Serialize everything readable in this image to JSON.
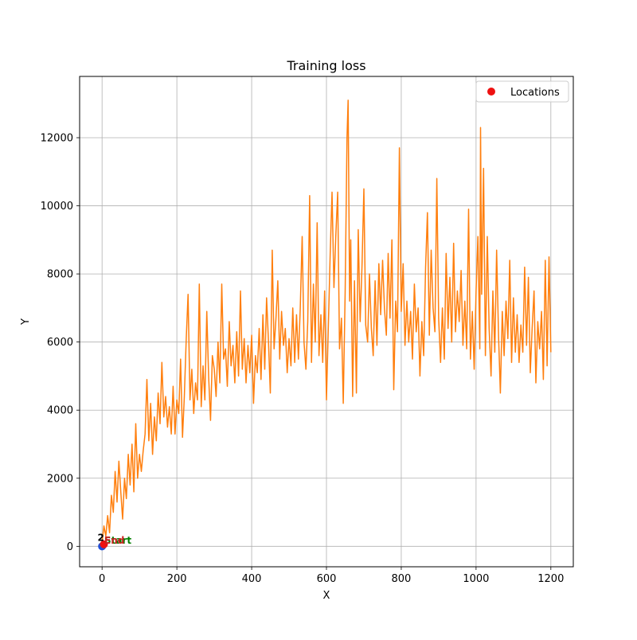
{
  "chart_data": {
    "type": "line",
    "title": "Training loss",
    "xlabel": "X",
    "ylabel": "Y",
    "xlim": [
      -60,
      1260
    ],
    "ylim": [
      -600,
      13800
    ],
    "xticks": [
      0,
      200,
      400,
      600,
      800,
      1000,
      1200
    ],
    "yticks": [
      0,
      2000,
      4000,
      6000,
      8000,
      10000,
      12000
    ],
    "grid": true,
    "legend": {
      "position": "top-right",
      "entries": [
        {
          "label": "Locations",
          "marker": "circle",
          "color": "#ee1111"
        }
      ]
    },
    "series": [
      {
        "color": "#ff7f0e",
        "points": [
          [
            0,
            100
          ],
          [
            5,
            600
          ],
          [
            10,
            300
          ],
          [
            15,
            900
          ],
          [
            20,
            400
          ],
          [
            25,
            1500
          ],
          [
            30,
            1000
          ],
          [
            35,
            2200
          ],
          [
            40,
            1300
          ],
          [
            45,
            2500
          ],
          [
            50,
            1600
          ],
          [
            55,
            800
          ],
          [
            60,
            2000
          ],
          [
            65,
            1400
          ],
          [
            70,
            2700
          ],
          [
            75,
            1800
          ],
          [
            80,
            3000
          ],
          [
            85,
            1600
          ],
          [
            90,
            3600
          ],
          [
            95,
            2000
          ],
          [
            100,
            2700
          ],
          [
            105,
            2200
          ],
          [
            110,
            2800
          ],
          [
            115,
            3300
          ],
          [
            120,
            4900
          ],
          [
            125,
            3100
          ],
          [
            130,
            4200
          ],
          [
            135,
            2700
          ],
          [
            140,
            3800
          ],
          [
            145,
            3100
          ],
          [
            150,
            4500
          ],
          [
            155,
            3600
          ],
          [
            160,
            5400
          ],
          [
            165,
            3800
          ],
          [
            170,
            4400
          ],
          [
            175,
            3500
          ],
          [
            180,
            4100
          ],
          [
            185,
            3300
          ],
          [
            190,
            4700
          ],
          [
            195,
            3300
          ],
          [
            200,
            4300
          ],
          [
            205,
            3900
          ],
          [
            210,
            5500
          ],
          [
            215,
            3200
          ],
          [
            220,
            4400
          ],
          [
            225,
            6100
          ],
          [
            230,
            7400
          ],
          [
            235,
            4300
          ],
          [
            240,
            5200
          ],
          [
            245,
            3900
          ],
          [
            250,
            4800
          ],
          [
            255,
            4300
          ],
          [
            260,
            7700
          ],
          [
            265,
            4100
          ],
          [
            270,
            5300
          ],
          [
            275,
            4300
          ],
          [
            280,
            6900
          ],
          [
            285,
            5000
          ],
          [
            290,
            3700
          ],
          [
            295,
            5600
          ],
          [
            300,
            5200
          ],
          [
            305,
            4400
          ],
          [
            310,
            6000
          ],
          [
            315,
            4800
          ],
          [
            320,
            7700
          ],
          [
            325,
            5500
          ],
          [
            330,
            5800
          ],
          [
            335,
            4700
          ],
          [
            340,
            6600
          ],
          [
            345,
            5300
          ],
          [
            350,
            5900
          ],
          [
            355,
            4800
          ],
          [
            360,
            6300
          ],
          [
            365,
            5000
          ],
          [
            370,
            7500
          ],
          [
            375,
            5200
          ],
          [
            380,
            6100
          ],
          [
            385,
            4800
          ],
          [
            390,
            5900
          ],
          [
            395,
            5100
          ],
          [
            400,
            6200
          ],
          [
            405,
            4200
          ],
          [
            410,
            5600
          ],
          [
            415,
            5100
          ],
          [
            420,
            6400
          ],
          [
            425,
            4900
          ],
          [
            430,
            6800
          ],
          [
            435,
            5200
          ],
          [
            440,
            7300
          ],
          [
            445,
            6000
          ],
          [
            450,
            4500
          ],
          [
            455,
            8700
          ],
          [
            460,
            5800
          ],
          [
            465,
            6700
          ],
          [
            470,
            7800
          ],
          [
            475,
            5500
          ],
          [
            480,
            6900
          ],
          [
            485,
            5900
          ],
          [
            490,
            6400
          ],
          [
            495,
            5100
          ],
          [
            500,
            6100
          ],
          [
            505,
            5300
          ],
          [
            510,
            7000
          ],
          [
            515,
            5400
          ],
          [
            520,
            6800
          ],
          [
            525,
            5500
          ],
          [
            530,
            7000
          ],
          [
            535,
            9100
          ],
          [
            540,
            6000
          ],
          [
            545,
            5200
          ],
          [
            550,
            6600
          ],
          [
            555,
            10300
          ],
          [
            560,
            5400
          ],
          [
            565,
            7700
          ],
          [
            570,
            6000
          ],
          [
            575,
            9500
          ],
          [
            580,
            5600
          ],
          [
            585,
            6800
          ],
          [
            590,
            5400
          ],
          [
            595,
            7500
          ],
          [
            600,
            4300
          ],
          [
            605,
            6400
          ],
          [
            610,
            8600
          ],
          [
            615,
            10400
          ],
          [
            620,
            7600
          ],
          [
            625,
            9100
          ],
          [
            630,
            10400
          ],
          [
            635,
            5800
          ],
          [
            640,
            6700
          ],
          [
            645,
            4200
          ],
          [
            650,
            7500
          ],
          [
            655,
            12000
          ],
          [
            658,
            13100
          ],
          [
            662,
            7200
          ],
          [
            665,
            9000
          ],
          [
            670,
            4400
          ],
          [
            675,
            7800
          ],
          [
            680,
            4500
          ],
          [
            685,
            9300
          ],
          [
            690,
            6600
          ],
          [
            695,
            8200
          ],
          [
            700,
            10500
          ],
          [
            705,
            6500
          ],
          [
            710,
            6000
          ],
          [
            715,
            8000
          ],
          [
            720,
            6400
          ],
          [
            725,
            5600
          ],
          [
            730,
            7800
          ],
          [
            735,
            5900
          ],
          [
            740,
            8300
          ],
          [
            745,
            6800
          ],
          [
            750,
            8400
          ],
          [
            755,
            7000
          ],
          [
            760,
            6200
          ],
          [
            765,
            8600
          ],
          [
            770,
            6700
          ],
          [
            775,
            9000
          ],
          [
            780,
            4600
          ],
          [
            785,
            7200
          ],
          [
            790,
            6300
          ],
          [
            795,
            11700
          ],
          [
            800,
            6900
          ],
          [
            805,
            8300
          ],
          [
            810,
            5900
          ],
          [
            815,
            7200
          ],
          [
            820,
            6000
          ],
          [
            825,
            6900
          ],
          [
            830,
            5500
          ],
          [
            835,
            7700
          ],
          [
            840,
            6300
          ],
          [
            845,
            7000
          ],
          [
            850,
            5000
          ],
          [
            855,
            6600
          ],
          [
            860,
            5600
          ],
          [
            865,
            8200
          ],
          [
            870,
            9800
          ],
          [
            875,
            6200
          ],
          [
            880,
            8700
          ],
          [
            885,
            7000
          ],
          [
            890,
            6300
          ],
          [
            895,
            10800
          ],
          [
            900,
            6700
          ],
          [
            905,
            5400
          ],
          [
            910,
            7000
          ],
          [
            915,
            5500
          ],
          [
            920,
            8600
          ],
          [
            925,
            6400
          ],
          [
            930,
            7900
          ],
          [
            935,
            6000
          ],
          [
            940,
            8900
          ],
          [
            945,
            6300
          ],
          [
            950,
            7500
          ],
          [
            955,
            6600
          ],
          [
            960,
            8100
          ],
          [
            965,
            5900
          ],
          [
            970,
            7200
          ],
          [
            975,
            5800
          ],
          [
            980,
            9900
          ],
          [
            985,
            5500
          ],
          [
            990,
            6900
          ],
          [
            995,
            5200
          ],
          [
            1000,
            7500
          ],
          [
            1005,
            9100
          ],
          [
            1010,
            5800
          ],
          [
            1012,
            12300
          ],
          [
            1015,
            7400
          ],
          [
            1020,
            11100
          ],
          [
            1025,
            5600
          ],
          [
            1030,
            9100
          ],
          [
            1035,
            6400
          ],
          [
            1040,
            5000
          ],
          [
            1045,
            7500
          ],
          [
            1050,
            5700
          ],
          [
            1055,
            8700
          ],
          [
            1060,
            6200
          ],
          [
            1065,
            4500
          ],
          [
            1070,
            6900
          ],
          [
            1075,
            5600
          ],
          [
            1080,
            7200
          ],
          [
            1085,
            6100
          ],
          [
            1090,
            8400
          ],
          [
            1095,
            5400
          ],
          [
            1100,
            7300
          ],
          [
            1105,
            5700
          ],
          [
            1110,
            6800
          ],
          [
            1115,
            5400
          ],
          [
            1120,
            6500
          ],
          [
            1125,
            5700
          ],
          [
            1130,
            8200
          ],
          [
            1135,
            5900
          ],
          [
            1140,
            7900
          ],
          [
            1145,
            5100
          ],
          [
            1150,
            6400
          ],
          [
            1155,
            7500
          ],
          [
            1160,
            4800
          ],
          [
            1165,
            6600
          ],
          [
            1170,
            5800
          ],
          [
            1175,
            6900
          ],
          [
            1180,
            4900
          ],
          [
            1185,
            8400
          ],
          [
            1190,
            5300
          ],
          [
            1195,
            8500
          ],
          [
            1200,
            5700
          ]
        ]
      }
    ],
    "annotations": [
      {
        "text": "Start",
        "x": 6,
        "y": 80,
        "color": "#008000"
      },
      {
        "text": "End",
        "x": 6,
        "y": 80,
        "color": "#cc2222"
      },
      {
        "text": "2",
        "x": -12,
        "y": 160,
        "color": "#000000"
      }
    ],
    "locations": [
      {
        "x": 0,
        "y": 0,
        "color": "#1f4fd8"
      },
      {
        "x": 5,
        "y": 60,
        "color": "#ee1111"
      }
    ]
  }
}
